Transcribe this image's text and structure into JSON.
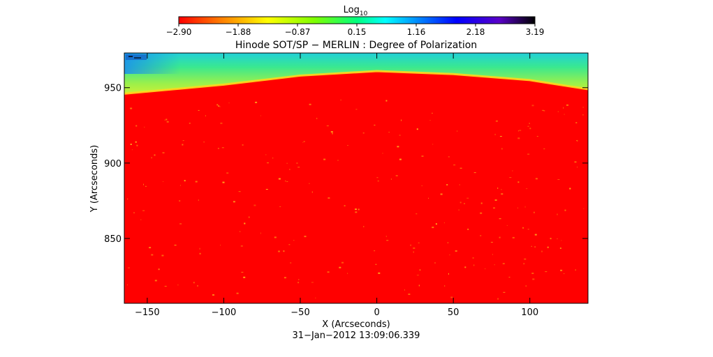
{
  "chart_data": {
    "type": "heatmap",
    "title": "Hinode SOT/SP − MERLIN : Degree of Polarization",
    "xlabel": "X (Arcseconds)",
    "ylabel": "Y (Arcseconds)",
    "date_label": "31−Jan−2012 13:09:06.339",
    "xlim": [
      -165,
      138
    ],
    "ylim": [
      807,
      973
    ],
    "x_ticks": [
      -150,
      -100,
      -50,
      0,
      50,
      100
    ],
    "x_tick_labels": [
      "−150",
      "−100",
      "−50",
      "0",
      "50",
      "100"
    ],
    "y_ticks": [
      850,
      900,
      950
    ],
    "y_tick_labels": [
      "850",
      "900",
      "950"
    ],
    "limb": {
      "description": "solar limb edge, field is off-disk above the limb",
      "points": [
        [
          -165,
          946
        ],
        [
          -100,
          952
        ],
        [
          -50,
          958
        ],
        [
          0,
          961
        ],
        [
          50,
          959
        ],
        [
          100,
          955
        ],
        [
          125,
          951
        ],
        [
          138,
          949
        ]
      ]
    },
    "disk_value_log": -2.9,
    "off_disk_value_log": [
      0.15,
      1.16
    ],
    "colorbar": {
      "label": "Log",
      "label_subscript": "10",
      "min": -2.9,
      "max": 3.19,
      "tick_labels": [
        "−2.90",
        "−1.88",
        "−0.87",
        "0.15",
        "1.16",
        "2.18",
        "3.19"
      ],
      "colormap": [
        "#ff0000",
        "#ff7f00",
        "#ffff00",
        "#7fff00",
        "#00ff7f",
        "#00ffff",
        "#007fff",
        "#0000ff",
        "#5a00c8",
        "#000000"
      ]
    }
  }
}
